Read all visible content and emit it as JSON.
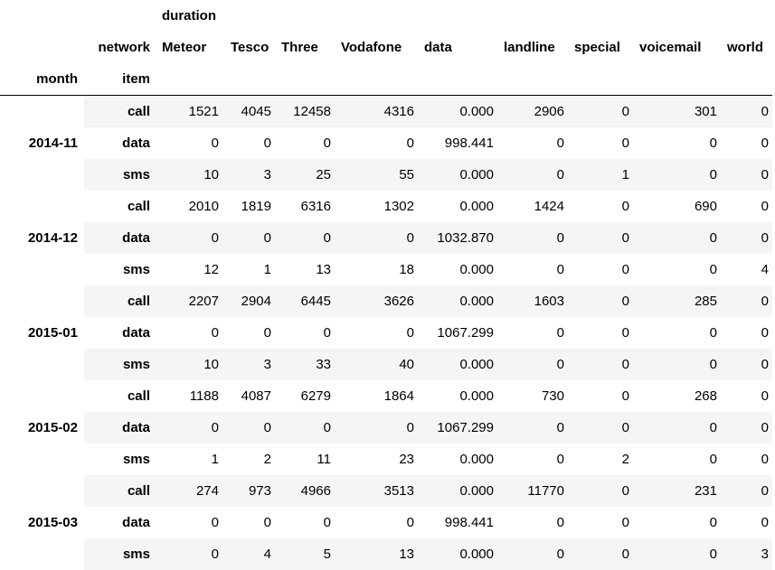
{
  "columns": {
    "top_level_label": "duration",
    "header_row_name": "network",
    "networks": [
      "Meteor",
      "Tesco",
      "Three",
      "Vodafone",
      "data",
      "landline",
      "special",
      "voicemail",
      "world"
    ]
  },
  "index": {
    "names": [
      "month",
      "item"
    ]
  },
  "groups": [
    {
      "month": "2014-11",
      "rows": [
        {
          "item": "call",
          "values": [
            "1521",
            "4045",
            "12458",
            "4316",
            "0.000",
            "2906",
            "0",
            "301",
            "0"
          ]
        },
        {
          "item": "data",
          "values": [
            "0",
            "0",
            "0",
            "0",
            "998.441",
            "0",
            "0",
            "0",
            "0"
          ]
        },
        {
          "item": "sms",
          "values": [
            "10",
            "3",
            "25",
            "55",
            "0.000",
            "0",
            "1",
            "0",
            "0"
          ]
        }
      ]
    },
    {
      "month": "2014-12",
      "rows": [
        {
          "item": "call",
          "values": [
            "2010",
            "1819",
            "6316",
            "1302",
            "0.000",
            "1424",
            "0",
            "690",
            "0"
          ]
        },
        {
          "item": "data",
          "values": [
            "0",
            "0",
            "0",
            "0",
            "1032.870",
            "0",
            "0",
            "0",
            "0"
          ]
        },
        {
          "item": "sms",
          "values": [
            "12",
            "1",
            "13",
            "18",
            "0.000",
            "0",
            "0",
            "0",
            "4"
          ]
        }
      ]
    },
    {
      "month": "2015-01",
      "rows": [
        {
          "item": "call",
          "values": [
            "2207",
            "2904",
            "6445",
            "3626",
            "0.000",
            "1603",
            "0",
            "285",
            "0"
          ]
        },
        {
          "item": "data",
          "values": [
            "0",
            "0",
            "0",
            "0",
            "1067.299",
            "0",
            "0",
            "0",
            "0"
          ]
        },
        {
          "item": "sms",
          "values": [
            "10",
            "3",
            "33",
            "40",
            "0.000",
            "0",
            "0",
            "0",
            "0"
          ]
        }
      ]
    },
    {
      "month": "2015-02",
      "rows": [
        {
          "item": "call",
          "values": [
            "1188",
            "4087",
            "6279",
            "1864",
            "0.000",
            "730",
            "0",
            "268",
            "0"
          ]
        },
        {
          "item": "data",
          "values": [
            "0",
            "0",
            "0",
            "0",
            "1067.299",
            "0",
            "0",
            "0",
            "0"
          ]
        },
        {
          "item": "sms",
          "values": [
            "1",
            "2",
            "11",
            "23",
            "0.000",
            "0",
            "2",
            "0",
            "0"
          ]
        }
      ]
    },
    {
      "month": "2015-03",
      "rows": [
        {
          "item": "call",
          "values": [
            "274",
            "973",
            "4966",
            "3513",
            "0.000",
            "11770",
            "0",
            "231",
            "0"
          ]
        },
        {
          "item": "data",
          "values": [
            "0",
            "0",
            "0",
            "0",
            "998.441",
            "0",
            "0",
            "0",
            "0"
          ]
        },
        {
          "item": "sms",
          "values": [
            "0",
            "4",
            "5",
            "13",
            "0.000",
            "0",
            "0",
            "0",
            "3"
          ]
        }
      ]
    }
  ],
  "colors": {
    "stripe": "#f5f5f5",
    "background": "#ffffff",
    "text": "#000000"
  }
}
